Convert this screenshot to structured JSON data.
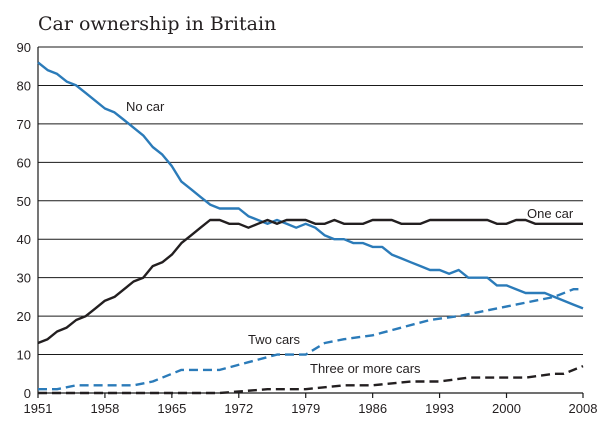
{
  "chart_data": {
    "type": "line",
    "title": "Car ownership in Britain",
    "xlabel": "",
    "ylabel": "",
    "xlim": [
      1951,
      2008
    ],
    "ylim": [
      0,
      90
    ],
    "xticks": [
      1951,
      1958,
      1965,
      1972,
      1979,
      1986,
      1993,
      2000,
      2008
    ],
    "yticks": [
      0,
      10,
      20,
      30,
      40,
      50,
      60,
      70,
      80,
      90
    ],
    "grid": true,
    "series": [
      {
        "name": "No car",
        "color": "#2b7bb9",
        "dash": "solid",
        "x": [
          1951,
          1952,
          1953,
          1954,
          1955,
          1956,
          1957,
          1958,
          1959,
          1960,
          1961,
          1962,
          1963,
          1964,
          1965,
          1966,
          1967,
          1968,
          1969,
          1970,
          1971,
          1972,
          1973,
          1974,
          1975,
          1976,
          1977,
          1978,
          1979,
          1980,
          1981,
          1982,
          1983,
          1984,
          1985,
          1986,
          1987,
          1988,
          1989,
          1990,
          1991,
          1992,
          1993,
          1994,
          1995,
          1996,
          1997,
          1998,
          1999,
          2000,
          2001,
          2002,
          2003,
          2004,
          2005,
          2006,
          2007,
          2008
        ],
        "values": [
          86,
          84,
          83,
          81,
          80,
          78,
          76,
          74,
          73,
          71,
          69,
          67,
          64,
          62,
          59,
          55,
          53,
          51,
          49,
          48,
          48,
          48,
          46,
          45,
          44,
          45,
          44,
          43,
          44,
          43,
          41,
          40,
          40,
          39,
          39,
          38,
          38,
          36,
          35,
          34,
          33,
          32,
          32,
          31,
          32,
          30,
          30,
          30,
          28,
          28,
          27,
          26,
          26,
          26,
          25,
          24,
          23,
          22
        ]
      },
      {
        "name": "One car",
        "color": "#231f20",
        "dash": "solid",
        "x": [
          1951,
          1952,
          1953,
          1954,
          1955,
          1956,
          1957,
          1958,
          1959,
          1960,
          1961,
          1962,
          1963,
          1964,
          1965,
          1966,
          1967,
          1968,
          1969,
          1970,
          1971,
          1972,
          1973,
          1974,
          1975,
          1976,
          1977,
          1978,
          1979,
          1980,
          1981,
          1982,
          1983,
          1984,
          1985,
          1986,
          1987,
          1988,
          1989,
          1990,
          1991,
          1992,
          1993,
          1994,
          1995,
          1996,
          1997,
          1998,
          1999,
          2000,
          2001,
          2002,
          2003,
          2004,
          2005,
          2006,
          2007,
          2008
        ],
        "values": [
          13,
          14,
          16,
          17,
          19,
          20,
          22,
          24,
          25,
          27,
          29,
          30,
          33,
          34,
          36,
          39,
          41,
          43,
          45,
          45,
          44,
          44,
          43,
          44,
          45,
          44,
          45,
          45,
          45,
          44,
          44,
          45,
          44,
          44,
          44,
          45,
          45,
          45,
          44,
          44,
          44,
          45,
          45,
          45,
          45,
          45,
          45,
          45,
          44,
          44,
          45,
          45,
          44,
          44,
          44,
          44,
          44,
          44
        ]
      },
      {
        "name": "Two cars",
        "color": "#2b7bb9",
        "dash": "dashed",
        "x": [
          1951,
          1953,
          1955,
          1958,
          1961,
          1963,
          1966,
          1970,
          1973,
          1976,
          1979,
          1981,
          1983,
          1986,
          1989,
          1992,
          1995,
          1997,
          1999,
          2001,
          2003,
          2005,
          2007,
          2008
        ],
        "values": [
          1,
          1,
          2,
          2,
          2,
          3,
          6,
          6,
          8,
          10,
          10,
          13,
          14,
          15,
          17,
          19,
          20,
          21,
          22,
          23,
          24,
          25,
          27,
          27
        ]
      },
      {
        "name": "Three or more cars",
        "color": "#231f20",
        "dash": "dashed",
        "x": [
          1951,
          1955,
          1960,
          1965,
          1970,
          1975,
          1979,
          1983,
          1986,
          1990,
          1993,
          1996,
          1999,
          2002,
          2005,
          2006,
          2008
        ],
        "values": [
          0,
          0,
          0,
          0,
          0,
          1,
          1,
          2,
          2,
          3,
          3,
          4,
          4,
          4,
          5,
          5,
          7
        ]
      }
    ],
    "labels": {
      "no_car": "No car",
      "one_car": "One car",
      "two_cars": "Two cars",
      "three_or_more": "Three or more cars"
    }
  }
}
